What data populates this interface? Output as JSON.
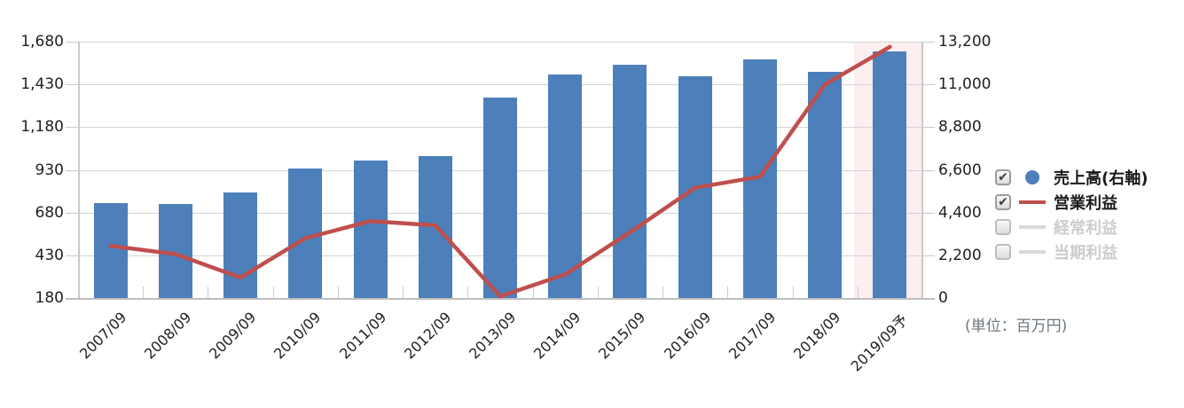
{
  "chart_data": {
    "type": "bar",
    "subtype": "bar+line dual-axis",
    "title": "",
    "unit": "百万円",
    "categories": [
      "2007/09",
      "2008/09",
      "2009/09",
      "2010/09",
      "2011/09",
      "2012/09",
      "2013/09",
      "2014/09",
      "2015/09",
      "2016/09",
      "2017/09",
      "2018/09",
      "2019/09予"
    ],
    "series": [
      {
        "name": "売上高(右軸)",
        "type": "bar",
        "axis": "right",
        "color": "#4d7fba",
        "values": [
          4900,
          4860,
          5450,
          6690,
          7090,
          7330,
          10300,
          11500,
          12000,
          11430,
          12290,
          11650,
          12680
        ]
      },
      {
        "name": "営業利益",
        "type": "line",
        "axis": "left",
        "color": "#bf4f4d",
        "values": [
          485,
          437,
          300,
          530,
          630,
          605,
          190,
          318,
          565,
          825,
          890,
          1430,
          1650
        ]
      }
    ],
    "left_axis": {
      "min": 180,
      "max": 1680,
      "ticks": [
        {
          "label": "1,680",
          "value": 1680
        },
        {
          "label": "1,430",
          "value": 1430
        },
        {
          "label": "1,180",
          "value": 1180
        },
        {
          "label": "930",
          "value": 930
        },
        {
          "label": "680",
          "value": 680
        },
        {
          "label": "430",
          "value": 430
        },
        {
          "label": "180",
          "value": 180
        }
      ]
    },
    "right_axis": {
      "min": 0,
      "max": 13200,
      "ticks": [
        {
          "label": "13,200",
          "value": 13200
        },
        {
          "label": "11,000",
          "value": 11000
        },
        {
          "label": "8,800",
          "value": 8800
        },
        {
          "label": "6,600",
          "value": 6600
        },
        {
          "label": "4,400",
          "value": 4400
        },
        {
          "label": "2,200",
          "value": 2200
        },
        {
          "label": "0",
          "value": 0
        }
      ]
    },
    "grid": true,
    "legend_position": "right",
    "highlight_band": {
      "category": "2019/09予",
      "color": "#fdeef0"
    }
  },
  "legend": {
    "items": [
      {
        "key": "sales-right-axis",
        "label": "売上高(右軸)",
        "checked": true,
        "enabled": true,
        "marker": "circle",
        "color": "#4d7fba"
      },
      {
        "key": "operating-profit",
        "label": "営業利益",
        "checked": true,
        "enabled": true,
        "marker": "line",
        "color": "#bf4f4d"
      },
      {
        "key": "ordinary-profit",
        "label": "経常利益",
        "checked": false,
        "enabled": false,
        "marker": "line",
        "color": "#d9d9d9"
      },
      {
        "key": "net-profit",
        "label": "当期利益",
        "checked": false,
        "enabled": false,
        "marker": "line",
        "color": "#d9d9d9"
      }
    ],
    "checkmark": "✔"
  },
  "footnote": {
    "unit_label": "(単位：百万円)"
  },
  "colors": {
    "bar": "#4d7fba",
    "line": "#bf4f4d",
    "highlight_band": "#fdeef0",
    "gridline": "#d4d4d4",
    "axis_text": "#1f1f1f",
    "disabled_text": "#cccccc",
    "unit_text": "#6b7680"
  }
}
